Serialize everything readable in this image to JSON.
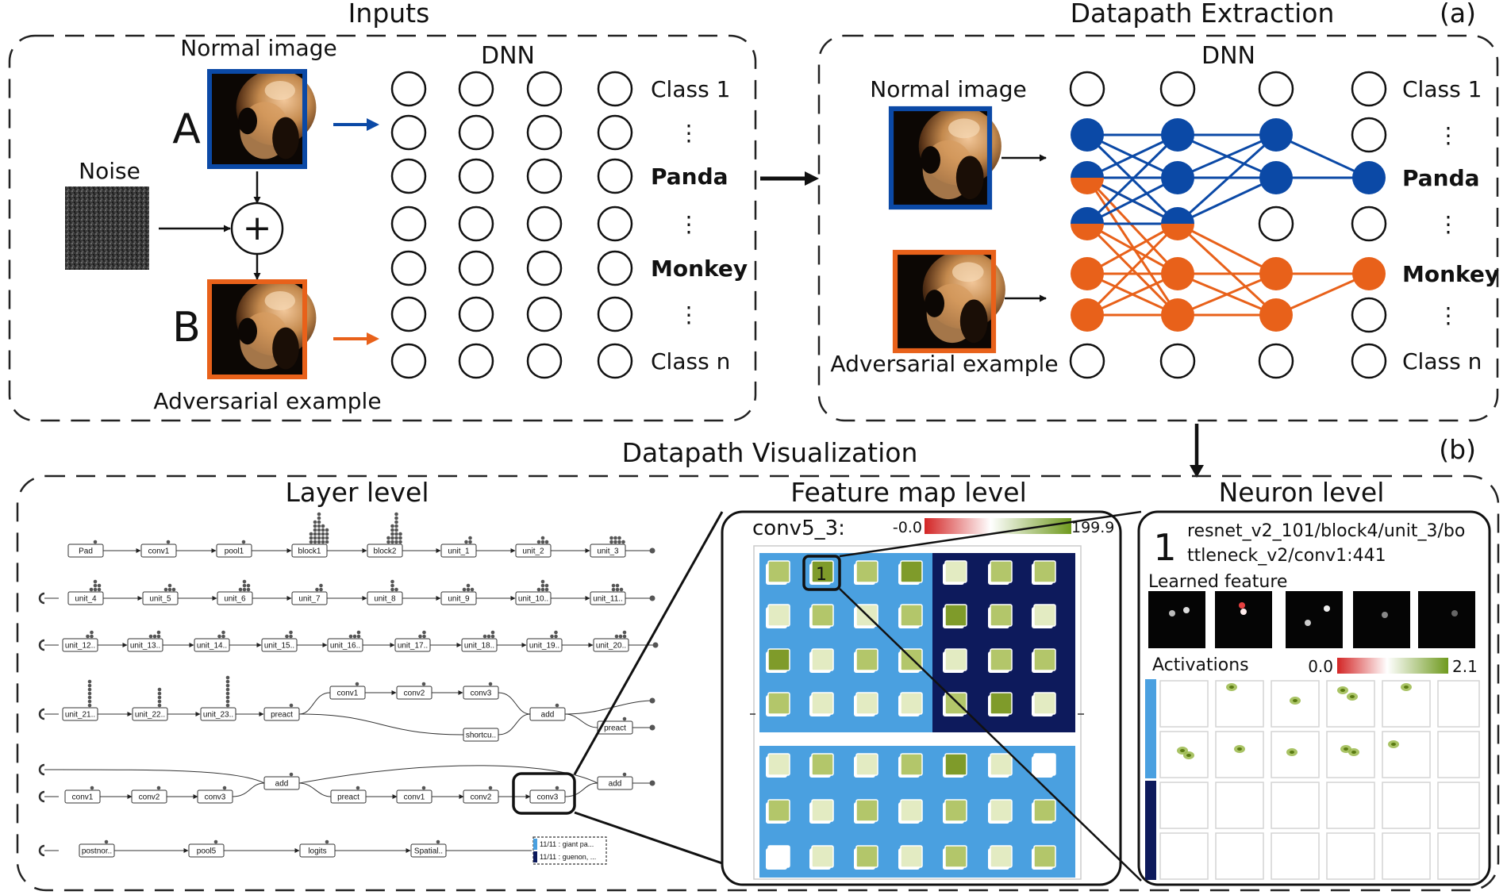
{
  "colors": {
    "blue": "#0b49a6",
    "orange": "#e8611a",
    "light_blue": "#4aa0e0",
    "navy": "#0d1a5c",
    "green_dark": "#7f9b2a",
    "green_mid": "#b3c66a",
    "green_light": "#e3ebc2"
  },
  "section_a": {
    "label": "(a)",
    "inputs": {
      "title": "Inputs",
      "normal_image": "Normal image",
      "noise": "Noise",
      "letter_a": "A",
      "letter_b": "B",
      "adversarial_example": "Adversarial example",
      "plus_symbol": "+"
    },
    "dnn": {
      "title": "DNN",
      "classes": [
        "Class 1",
        "⋮",
        "Panda",
        "⋮",
        "Monkey",
        "⋮",
        "Class n"
      ]
    },
    "extraction": {
      "title": "Datapath Extraction",
      "normal_image": "Normal image",
      "adversarial_example": "Adversarial example",
      "dnn_title": "DNN",
      "classes": [
        "Class 1",
        "⋮",
        "Panda",
        "⋮",
        "Monkey",
        "⋮",
        "Class n"
      ]
    }
  },
  "section_b": {
    "label": "(b)",
    "title": "Datapath Visualization",
    "layer_level": {
      "title": "Layer level",
      "rows": [
        [
          "Pad",
          "conv1",
          "pool1",
          "block1",
          "block2",
          "unit_1",
          "unit_2",
          "unit_3"
        ],
        [
          "unit_4",
          "unit_5",
          "unit_6",
          "unit_7",
          "unit_8",
          "unit_9",
          "unit_10..",
          "unit_11.."
        ],
        [
          "unit_12..",
          "unit_13..",
          "unit_14..",
          "unit_15..",
          "unit_16..",
          "unit_17..",
          "unit_18..",
          "unit_19..",
          "unit_20.."
        ],
        [
          "unit_21..",
          "unit_22..",
          "unit_23..",
          "preact"
        ],
        [
          "conv1",
          "conv2",
          "conv3"
        ],
        [
          "shortcu.."
        ],
        [
          "add",
          "preact"
        ],
        [
          "add",
          "add"
        ],
        [
          "conv1",
          "conv2",
          "conv3",
          "preact",
          "conv1",
          "conv2",
          "conv3"
        ],
        [
          "postnor..",
          "pool5",
          "logits",
          "Spatial.."
        ]
      ],
      "output_labels": [
        "11/11 : giant pa...",
        "11/11 : guenon, ..."
      ]
    },
    "feature_map_level": {
      "title": "Feature map level",
      "layer_name": "conv5_3:",
      "scale_min": "-0.0",
      "scale_max": "199.9",
      "highlight": "1"
    },
    "neuron_level": {
      "title": "Neuron level",
      "rank": "1",
      "neuron_path_line1": "resnet_v2_101/block4/unit_3/bo",
      "neuron_path_line2": "ttleneck_v2/conv1:441",
      "learned_feature": "Learned feature",
      "activations": "Activations",
      "scale_min": "0.0",
      "scale_max": "2.1"
    }
  }
}
